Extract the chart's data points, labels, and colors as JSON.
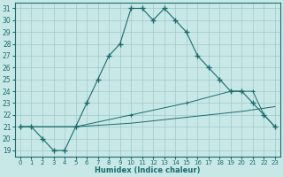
{
  "xlabel": "Humidex (Indice chaleur)",
  "bg_color": "#c8e8e8",
  "grid_color": "#a0c8c8",
  "line_color": "#1a6b6b",
  "xlim": [
    -0.5,
    23.5
  ],
  "ylim": [
    18.5,
    31.5
  ],
  "yticks": [
    19,
    20,
    21,
    22,
    23,
    24,
    25,
    26,
    27,
    28,
    29,
    30,
    31
  ],
  "xticks": [
    0,
    1,
    2,
    3,
    4,
    5,
    6,
    7,
    8,
    9,
    10,
    11,
    12,
    13,
    14,
    15,
    16,
    17,
    18,
    19,
    20,
    21,
    22,
    23
  ],
  "line1_x": [
    0,
    1,
    2,
    3,
    4,
    5,
    6,
    7,
    8,
    9,
    10,
    11,
    12,
    13,
    14,
    15,
    16,
    17,
    18,
    19,
    20,
    21,
    22,
    23
  ],
  "line1_y": [
    21,
    21,
    20,
    19,
    19,
    21,
    23,
    25,
    27,
    28,
    31,
    31,
    30,
    31,
    30,
    29,
    27,
    26,
    25,
    24,
    24,
    23,
    22,
    21
  ],
  "line2_x": [
    0,
    5,
    10,
    15,
    19,
    20,
    21,
    22,
    23
  ],
  "line2_y": [
    21,
    21,
    22,
    23,
    24,
    24,
    24,
    22,
    21
  ],
  "line3_x": [
    0,
    5,
    10,
    15,
    20,
    23
  ],
  "line3_y": [
    21,
    21,
    21.3,
    21.8,
    22.3,
    22.7
  ]
}
